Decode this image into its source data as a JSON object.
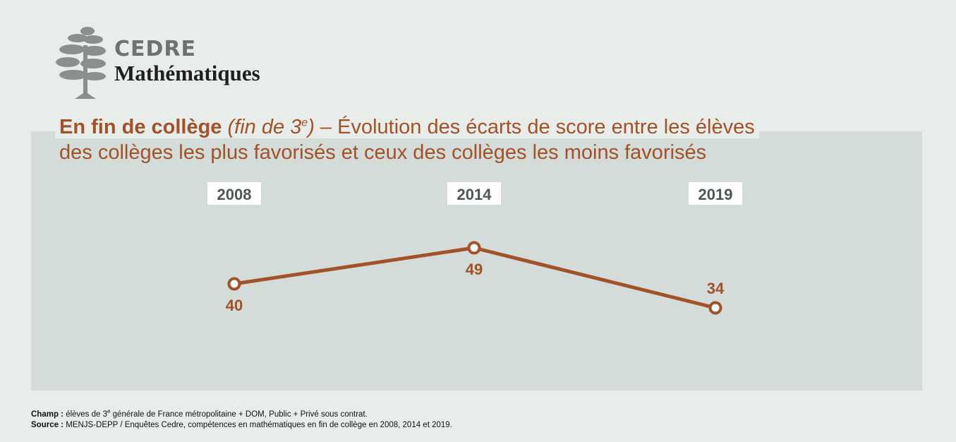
{
  "logo": {
    "line1": "CEDRE",
    "line2": "Mathématiques"
  },
  "title": {
    "bold": "En fin de collège",
    "italic_before_sup": "(fin de 3",
    "italic_sup": "e",
    "italic_after_sup": ")",
    "rest_line1": " – Évolution des écarts de score entre les élèves",
    "line2": "des collèges les plus favorisés et ceux des collèges les moins favorisés"
  },
  "chart_data": {
    "type": "line",
    "x": [
      "2008",
      "2014",
      "2019"
    ],
    "series": [
      {
        "values": [
          40,
          49,
          34
        ]
      }
    ],
    "label_positions": [
      "below",
      "below",
      "above"
    ],
    "line_color": "#a35127"
  },
  "footnote": {
    "champ_label": "Champ :",
    "champ_before_sup": " élèves de 3",
    "champ_sup": "e",
    "champ_after_sup": " générale de France métropolitaine + DOM, Public + Privé sous contrat.",
    "source_label": "Source :",
    "source_text": " MENJS-DEPP / Enquêtes Cedre, compétences en mathématiques en fin de collège en 2008, 2014 et 2019."
  }
}
